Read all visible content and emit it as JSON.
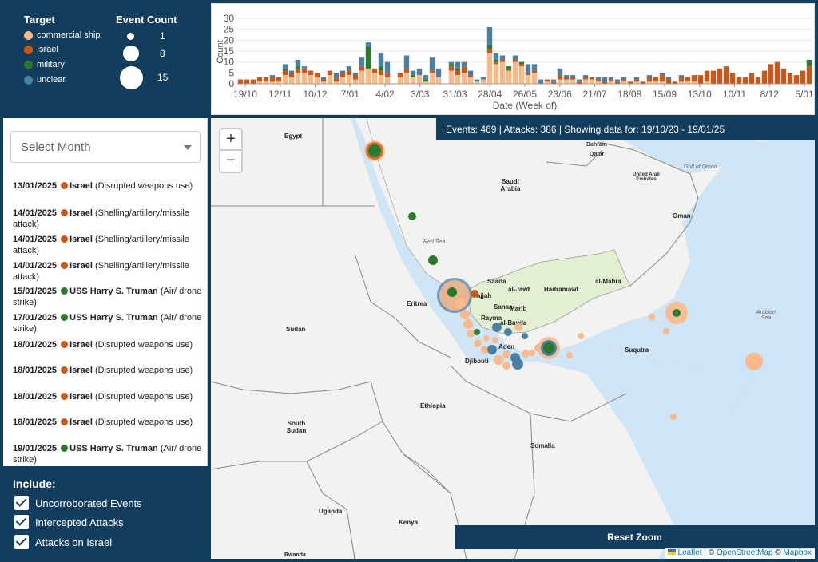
{
  "legend": {
    "target_title": "Target",
    "count_title": "Event Count",
    "targets": [
      {
        "label": "commercial ship",
        "color": "#fbb98a"
      },
      {
        "label": "Israel",
        "color": "#c8581a"
      },
      {
        "label": "military",
        "color": "#2a7a2e"
      },
      {
        "label": "unclear",
        "color": "#4a80a6"
      }
    ],
    "sizes": [
      "1",
      "8",
      "15"
    ]
  },
  "chart_data": {
    "type": "bar",
    "stacked": true,
    "ylabel": "Count",
    "xlabel": "Date (Week of)",
    "ylim": [
      0,
      30
    ],
    "yticks": [
      "0",
      "5",
      "10",
      "15",
      "20",
      "25",
      "30"
    ],
    "xticks": [
      "19/10",
      "12/11",
      "10/12",
      "7/01",
      "4/02",
      "3/03",
      "31/03",
      "28/04",
      "26/05",
      "23/06",
      "21/07",
      "18/08",
      "15/09",
      "13/10",
      "10/11",
      "8/12",
      "5/01"
    ],
    "series": [
      {
        "name": "commercial ship",
        "color": "#fbb98a",
        "values": [
          0,
          0,
          0,
          1,
          1,
          1,
          1,
          4,
          3,
          5,
          5,
          4,
          3,
          1,
          4,
          1,
          3,
          4,
          2,
          6,
          7,
          5,
          4,
          3,
          0,
          3,
          5,
          3,
          4,
          1,
          5,
          3,
          0,
          6,
          4,
          5,
          3,
          1,
          2,
          14,
          9,
          10,
          6,
          10,
          8,
          4,
          5,
          0,
          1,
          0,
          2,
          2,
          2,
          0,
          2,
          2,
          1,
          0,
          1,
          0,
          1,
          0,
          1,
          0,
          1,
          1,
          1,
          0,
          0,
          1,
          1,
          1,
          0,
          1,
          0,
          0,
          0,
          0,
          0,
          0,
          0,
          0,
          0,
          0,
          0,
          0,
          0,
          0,
          0,
          0
        ]
      },
      {
        "name": "Israel",
        "color": "#c8581a",
        "values": [
          2,
          2,
          2,
          2,
          2,
          2,
          2,
          2,
          2,
          2,
          2,
          2,
          2,
          1,
          2,
          2,
          2,
          2,
          2,
          2,
          0,
          2,
          2,
          2,
          0,
          2,
          2,
          0,
          0,
          0,
          1,
          0,
          0,
          2,
          2,
          3,
          1,
          0,
          0,
          2,
          1,
          1,
          1,
          1,
          1,
          1,
          1,
          0,
          1,
          1,
          2,
          1,
          1,
          1,
          1,
          1,
          1,
          1,
          1,
          1,
          1,
          1,
          1,
          1,
          2,
          2,
          3,
          2,
          1,
          2,
          2,
          3,
          4,
          5,
          6,
          7,
          8,
          5,
          3,
          3,
          5,
          3,
          6,
          9,
          10,
          7,
          5,
          4,
          6,
          8
        ]
      },
      {
        "name": "military",
        "color": "#2a7a2e",
        "values": [
          0,
          0,
          0,
          0,
          0,
          0,
          0,
          1,
          0,
          1,
          0,
          0,
          0,
          0,
          0,
          0,
          0,
          0,
          0,
          0,
          10,
          0,
          2,
          0,
          0,
          0,
          0,
          1,
          0,
          1,
          0,
          0,
          0,
          1,
          1,
          0,
          0,
          0,
          0,
          2,
          1,
          0,
          1,
          0,
          1,
          0,
          0,
          0,
          0,
          0,
          0,
          0,
          0,
          0,
          0,
          0,
          0,
          0,
          0,
          0,
          0,
          0,
          0,
          0,
          0,
          0,
          0,
          0,
          0,
          0,
          0,
          0,
          0,
          0,
          0,
          0,
          0,
          0,
          0,
          0,
          0,
          0,
          0,
          0,
          0,
          0,
          0,
          0,
          0,
          3
        ]
      },
      {
        "name": "unclear",
        "color": "#4a80a6",
        "values": [
          0,
          0,
          0,
          0,
          0,
          1,
          0,
          2,
          1,
          3,
          1,
          0,
          0,
          1,
          0,
          2,
          1,
          2,
          1,
          4,
          2,
          0,
          6,
          5,
          0,
          0,
          6,
          2,
          3,
          2,
          6,
          4,
          0,
          1,
          3,
          2,
          2,
          1,
          1,
          8,
          3,
          2,
          0,
          2,
          0,
          4,
          3,
          2,
          0,
          1,
          3,
          1,
          1,
          1,
          1,
          0,
          1,
          2,
          1,
          1,
          1,
          0,
          1,
          0,
          1,
          0,
          1,
          1,
          0,
          1,
          0,
          0,
          0,
          0,
          0,
          0,
          0,
          0,
          0,
          0,
          0,
          0,
          0,
          0,
          0,
          0,
          0,
          0,
          0,
          0
        ]
      }
    ]
  },
  "sidebar": {
    "select_placeholder": "Select Month",
    "events": [
      {
        "date": "13/01/2025",
        "target": "Israel",
        "desc": "(Disrupted weapons use)",
        "color": "#c8581a"
      },
      {
        "date": "14/01/2025",
        "target": "Israel",
        "desc": "(Shelling/artillery/missile attack)",
        "color": "#c8581a"
      },
      {
        "date": "14/01/2025",
        "target": "Israel",
        "desc": "(Shelling/artillery/missile attack)",
        "color": "#c8581a"
      },
      {
        "date": "14/01/2025",
        "target": "Israel",
        "desc": "(Shelling/artillery/missile attack)",
        "color": "#c8581a"
      },
      {
        "date": "15/01/2025",
        "target": "USS Harry S. Truman",
        "desc": "(Air/ drone strike)",
        "color": "#2a7a2e"
      },
      {
        "date": "17/01/2025",
        "target": "USS Harry S. Truman",
        "desc": "(Air/ drone strike)",
        "color": "#2a7a2e"
      },
      {
        "date": "18/01/2025",
        "target": "Israel",
        "desc": "(Disrupted weapons use)",
        "color": "#c8581a"
      },
      {
        "date": "18/01/2025",
        "target": "Israel",
        "desc": "(Disrupted weapons use)",
        "color": "#c8581a"
      },
      {
        "date": "18/01/2025",
        "target": "Israel",
        "desc": "(Disrupted weapons use)",
        "color": "#c8581a"
      },
      {
        "date": "18/01/2025",
        "target": "Israel",
        "desc": "(Disrupted weapons use)",
        "color": "#c8581a"
      },
      {
        "date": "19/01/2025",
        "target": "USS Harry S. Truman",
        "desc": "(Air/ drone strike)",
        "color": "#2a7a2e"
      }
    ]
  },
  "include": {
    "title": "Include:",
    "options": [
      "Uncorroborated Events",
      "Intercepted Attacks",
      "Attacks on Israel"
    ]
  },
  "map": {
    "stats": "Events: 469 | Attacks: 386 | Showing data for: 19/10/23 - 19/01/25",
    "zoom_in": "+",
    "zoom_out": "−",
    "reset_label": "Reset Zoom",
    "attrib_leaflet": "Leaflet",
    "attrib_sep1": " | © ",
    "attrib_osm": "OpenStreetMap",
    "attrib_sep2": " © ",
    "attrib_mapbox": "Mapbox",
    "labels": {
      "egypt": "Egypt",
      "saudi": "Saudi Arabia",
      "qatar": "Qatar",
      "bahrain": "Bahrain",
      "uae": "United Arab Emirates",
      "gulf_oman": "Gulf of Oman",
      "oman": "Oman",
      "red_sea": "Red Sea",
      "eritrea": "Eritrea",
      "sudan": "Sudan",
      "djibouti": "Djibouti",
      "ethiopia": "Ethiopia",
      "somalia": "Somalia",
      "south_sudan": "South Sudan",
      "uganda": "Uganda",
      "kenya": "Kenya",
      "rwanda": "Rwanda",
      "arabian_sea": "Arabian Sea",
      "suqutra": "Suqutra",
      "saada": "Saada",
      "al_jawf": "al-Jawf",
      "hadramawt": "Hadramawt",
      "al_mahra": "al-Mahra",
      "sanaa": "Sanaa",
      "marib": "Marib",
      "rayma": "Rayma",
      "al_bayda": "al-Bayda",
      "hajjah": "ajjah",
      "aden": "Aden"
    }
  }
}
